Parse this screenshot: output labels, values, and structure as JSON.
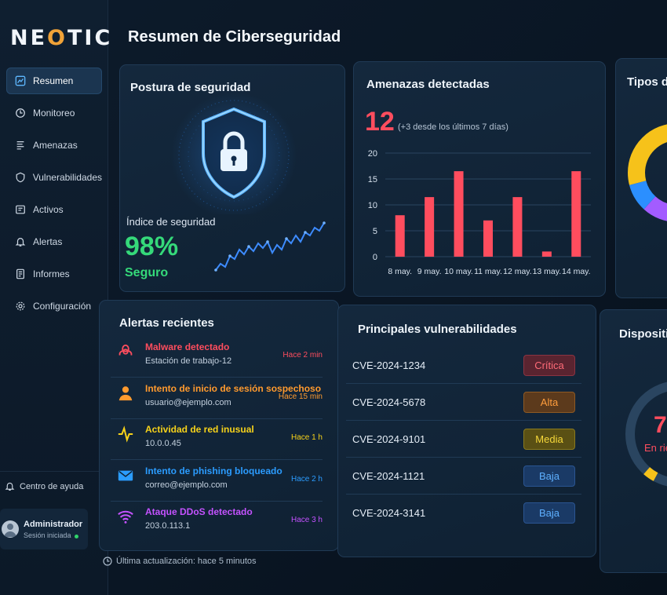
{
  "app": {
    "logo_text_1": "NE",
    "logo_text_o": "O",
    "logo_text_2": "TIC"
  },
  "sidebar": {
    "items": [
      {
        "label": "Resumen",
        "icon": "chart-icon",
        "active": true
      },
      {
        "label": "Monitoreo",
        "icon": "monitor-icon"
      },
      {
        "label": "Amenazas",
        "icon": "list-icon"
      },
      {
        "label": "Vulnerabilidades",
        "icon": "shield-icon"
      },
      {
        "label": "Activos",
        "icon": "assets-icon"
      },
      {
        "label": "Alertas",
        "icon": "bell-icon"
      },
      {
        "label": "Informes",
        "icon": "document-icon"
      },
      {
        "label": "Configuración",
        "icon": "gear-icon"
      }
    ],
    "help_label": "Centro de ayuda",
    "user": {
      "name": "Administrador",
      "status": "Sesión iniciada"
    }
  },
  "header": {
    "title": "Resumen de Ciberseguridad"
  },
  "security": {
    "title": "Postura de seguridad",
    "index_label": "Índice de seguridad",
    "index_value": "98%",
    "status": "Seguro",
    "colors": {
      "good": "#35d97a",
      "glow": "#2f8dff"
    }
  },
  "threats": {
    "title": "Amenazas detectadas",
    "count": "12",
    "note": "(+3 desde los últimos 7 días)",
    "chart_data": {
      "type": "bar",
      "categories": [
        "8 may.",
        "9 may.",
        "10 may.",
        "11 may.",
        "12 may.",
        "13 may.",
        "14 may."
      ],
      "values": [
        8,
        11.5,
        16.5,
        7,
        11.5,
        1,
        16.5
      ],
      "yticks": [
        0,
        5,
        10,
        15,
        20
      ],
      "ylim": [
        0,
        20
      ],
      "grid": true,
      "color": "#ff4d5e"
    }
  },
  "types": {
    "title": "Tipos d"
  },
  "alerts": {
    "title": "Alertas recientes",
    "items": [
      {
        "title": "Malware detectado",
        "sub": "Estación de trabajo-12",
        "time": "Hace 2 min",
        "icon": "biohazard-icon",
        "color": "#ff4d5e"
      },
      {
        "title": "Intento de inicio de sesión sospechoso",
        "sub": "usuario@ejemplo.com",
        "time": "Hace 15 min",
        "icon": "user-icon",
        "color": "#ff9a2e"
      },
      {
        "title": "Actividad de red inusual",
        "sub": "10.0.0.45",
        "time": "Hace 1 h",
        "icon": "network-activity-icon",
        "color": "#f7d21a"
      },
      {
        "title": "Intento de phishing bloqueado",
        "sub": "correo@ejemplo.com",
        "time": "Hace 2 h",
        "icon": "mail-icon",
        "color": "#2b9cff"
      },
      {
        "title": "Ataque DDoS detectado",
        "sub": "203.0.113.1",
        "time": "Hace 3 h",
        "icon": "wifi-icon",
        "color": "#c452ff"
      }
    ]
  },
  "vulns": {
    "title": "Principales vulnerabilidades",
    "items": [
      {
        "id": "CVE-2024-1234",
        "level": "Crítica",
        "bg": "#5a2430",
        "border": "#8b3442",
        "fg": "#ff6b78"
      },
      {
        "id": "CVE-2024-5678",
        "level": "Alta",
        "bg": "#5c3a1c",
        "border": "#8e5a24",
        "fg": "#ff9d3d"
      },
      {
        "id": "CVE-2024-9101",
        "level": "Media",
        "bg": "#5a5014",
        "border": "#8a7a1e",
        "fg": "#f6d83a"
      },
      {
        "id": "CVE-2024-1121",
        "level": "Baja",
        "bg": "#1a3a66",
        "border": "#2a5592",
        "fg": "#5eb0ff"
      },
      {
        "id": "CVE-2024-3141",
        "level": "Baja",
        "bg": "#1a3a66",
        "border": "#2a5592",
        "fg": "#5eb0ff"
      }
    ]
  },
  "devices": {
    "title": "Dispositi",
    "value": "7",
    "label": "En rie"
  },
  "footer": {
    "last_update": "Última actualización: hace 5 minutos"
  }
}
